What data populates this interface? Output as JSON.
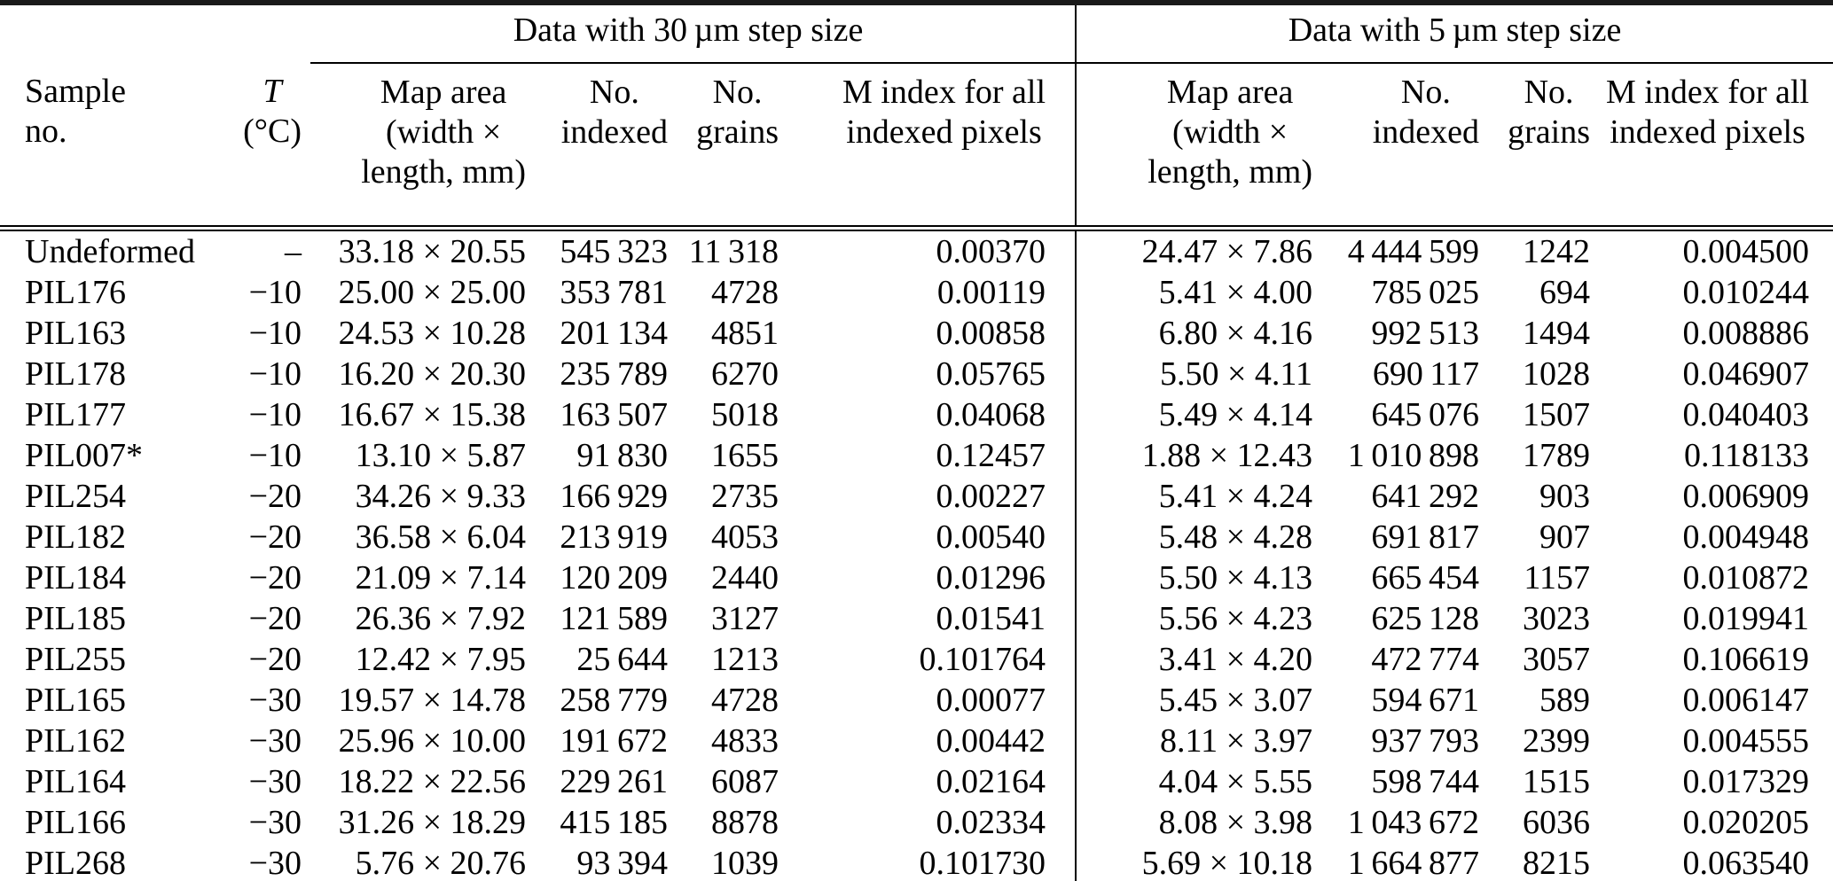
{
  "table": {
    "groups": [
      "Data with 30 µm step size",
      "Data with 5 µm step size"
    ],
    "columns": {
      "sample": [
        "Sample",
        "no."
      ],
      "temperature": [
        "T",
        "(°C)"
      ],
      "map_area_30": [
        "Map area",
        "(width ×",
        "length, mm)"
      ],
      "no_indexed_30": [
        "No.",
        "indexed"
      ],
      "no_grains_30": [
        "No.",
        "grains"
      ],
      "m_index_30": [
        "M index for all",
        "indexed pixels"
      ],
      "map_area_5": [
        "Map area",
        "(width ×",
        "length, mm)"
      ],
      "no_indexed_5": [
        "No.",
        "indexed"
      ],
      "no_grains_5": [
        "No.",
        "grains"
      ],
      "m_index_5": [
        "M index for all",
        "indexed pixels"
      ]
    },
    "rows": [
      [
        "Undeformed",
        "–",
        "33.18 × 20.55",
        "545 323",
        "11 318",
        "0.00370",
        "24.47 × 7.86",
        "4 444 599",
        "1242",
        "0.004500"
      ],
      [
        "PIL176",
        "−10",
        "25.00 × 25.00",
        "353 781",
        "4728",
        "0.00119",
        "5.41 × 4.00",
        "785 025",
        "694",
        "0.010244"
      ],
      [
        "PIL163",
        "−10",
        "24.53 × 10.28",
        "201 134",
        "4851",
        "0.00858",
        "6.80 × 4.16",
        "992 513",
        "1494",
        "0.008886"
      ],
      [
        "PIL178",
        "−10",
        "16.20 × 20.30",
        "235 789",
        "6270",
        "0.05765",
        "5.50 × 4.11",
        "690 117",
        "1028",
        "0.046907"
      ],
      [
        "PIL177",
        "−10",
        "16.67 × 15.38",
        "163 507",
        "5018",
        "0.04068",
        "5.49 × 4.14",
        "645 076",
        "1507",
        "0.040403"
      ],
      [
        "PIL007*",
        "−10",
        "13.10 × 5.87",
        "91 830",
        "1655",
        "0.12457",
        "1.88 × 12.43",
        "1 010 898",
        "1789",
        "0.118133"
      ],
      [
        "PIL254",
        "−20",
        "34.26 × 9.33",
        "166 929",
        "2735",
        "0.00227",
        "5.41 × 4.24",
        "641 292",
        "903",
        "0.006909"
      ],
      [
        "PIL182",
        "−20",
        "36.58 × 6.04",
        "213 919",
        "4053",
        "0.00540",
        "5.48 × 4.28",
        "691 817",
        "907",
        "0.004948"
      ],
      [
        "PIL184",
        "−20",
        "21.09 × 7.14",
        "120 209",
        "2440",
        "0.01296",
        "5.50 × 4.13",
        "665 454",
        "1157",
        "0.010872"
      ],
      [
        "PIL185",
        "−20",
        "26.36 × 7.92",
        "121 589",
        "3127",
        "0.01541",
        "5.56 × 4.23",
        "625 128",
        "3023",
        "0.019941"
      ],
      [
        "PIL255",
        "−20",
        "12.42 × 7.95",
        "25 644",
        "1213",
        "0.101764",
        "3.41 × 4.20",
        "472 774",
        "3057",
        "0.106619"
      ],
      [
        "PIL165",
        "−30",
        "19.57 × 14.78",
        "258 779",
        "4728",
        "0.00077",
        "5.45 × 3.07",
        "594 671",
        "589",
        "0.006147"
      ],
      [
        "PIL162",
        "−30",
        "25.96 × 10.00",
        "191 672",
        "4833",
        "0.00442",
        "8.11 × 3.97",
        "937 793",
        "2399",
        "0.004555"
      ],
      [
        "PIL164",
        "−30",
        "18.22 × 22.56",
        "229 261",
        "6087",
        "0.02164",
        "4.04 × 5.55",
        "598 744",
        "1515",
        "0.017329"
      ],
      [
        "PIL166",
        "−30",
        "31.26 × 18.29",
        "415 185",
        "8878",
        "0.02334",
        "8.08 × 3.98",
        "1 043 672",
        "6036",
        "0.020205"
      ],
      [
        "PIL268",
        "−30",
        "5.76 × 20.76",
        "93 394",
        "1039",
        "0.101730",
        "5.69 × 10.18",
        "1 664 877",
        "8215",
        "0.063540"
      ]
    ]
  }
}
